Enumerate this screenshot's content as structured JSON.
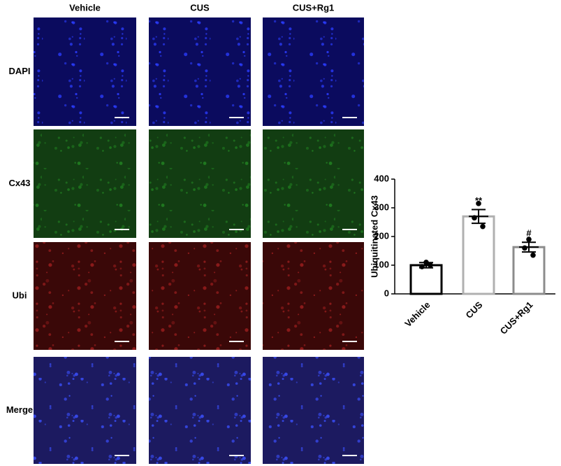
{
  "panels": {
    "columns": [
      "Vehicle",
      "CUS",
      "CUS+Rg1"
    ],
    "rows": [
      "DAPI",
      "Cx43",
      "Ubi",
      "Merge"
    ]
  },
  "chart_data": {
    "type": "bar",
    "ylabel": "Ubiquitinated Cx43",
    "categories": [
      "Vehicle",
      "CUS",
      "CUS+Rg1"
    ],
    "values": [
      100,
      270,
      163
    ],
    "errors": [
      9,
      24,
      17
    ],
    "points": [
      [
        110,
        95,
        100
      ],
      [
        315,
        265,
        235
      ],
      [
        190,
        160,
        135
      ]
    ],
    "colors": [
      "#000000",
      "#b0b0b0",
      "#8c8c8c"
    ],
    "annotations": [
      {
        "category": "CUS",
        "text": "**"
      },
      {
        "category": "CUS+Rg1",
        "text": "#"
      }
    ],
    "ylim": [
      0,
      400
    ],
    "yticks": [
      0,
      100,
      200,
      300,
      400
    ]
  }
}
